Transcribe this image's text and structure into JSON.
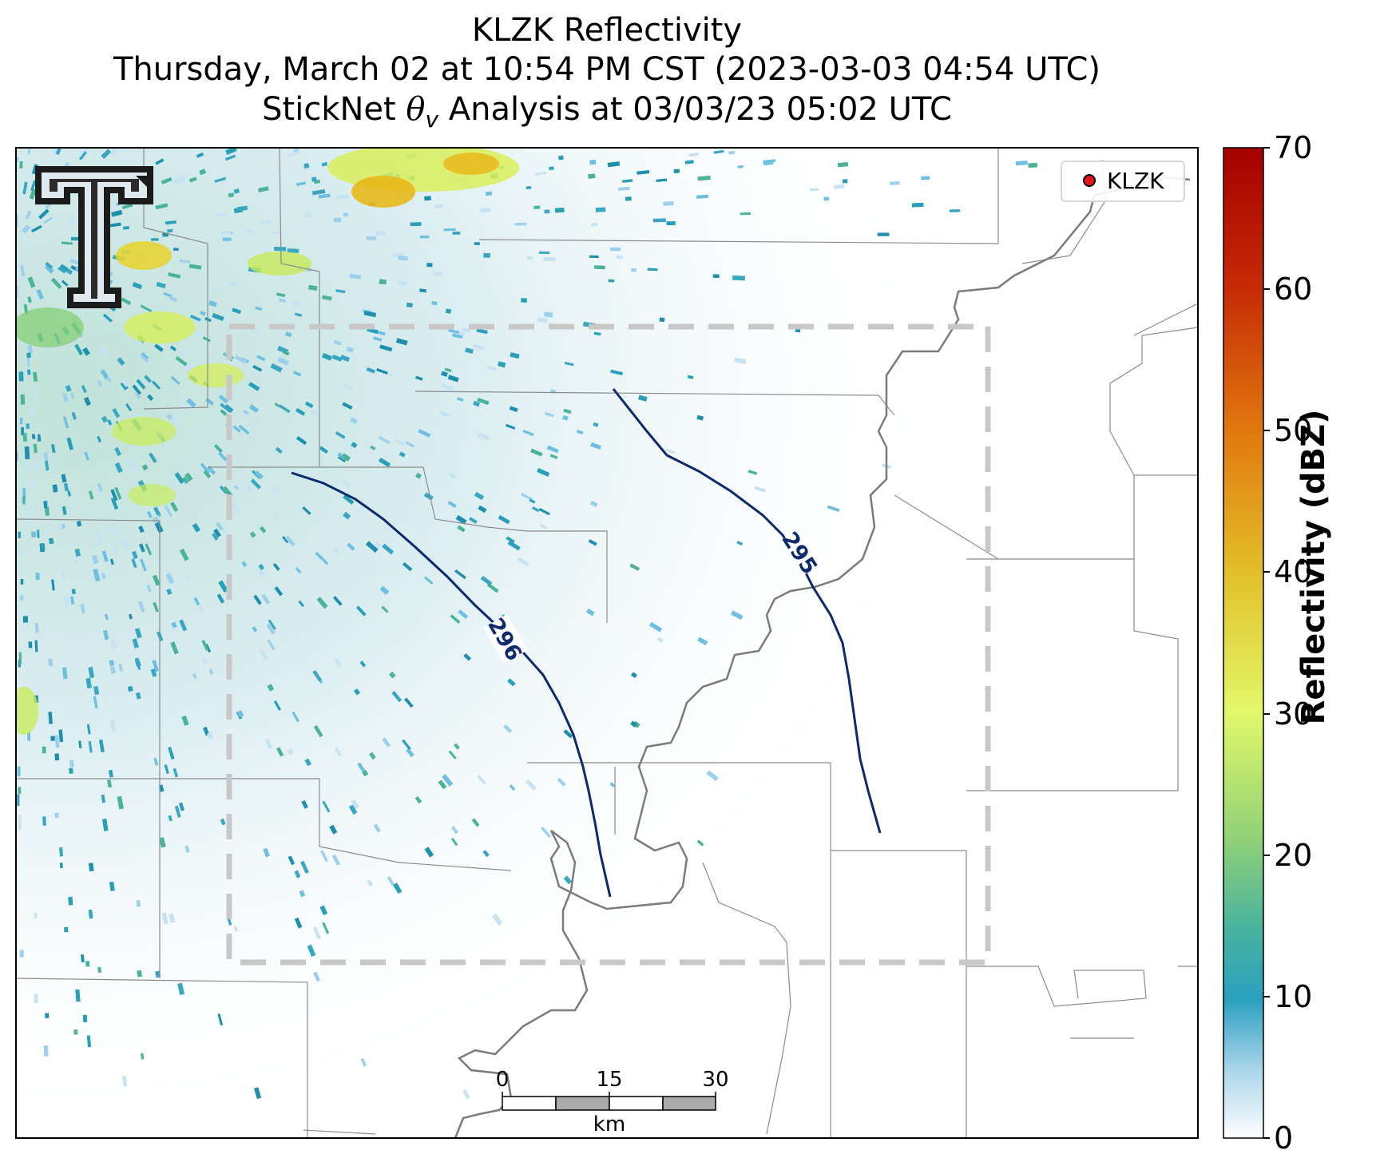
{
  "title": {
    "line1": "KLZK Reflectivity",
    "line2": "Thursday, March 02 at 10:54 PM CST (2023-03-03 04:54 UTC)",
    "line3_prefix": "StickNet ",
    "line3_symbol": "θ",
    "line3_subscript": "v",
    "line3_suffix": " Analysis at 03/03/23 05:02 UTC"
  },
  "legend": {
    "label": "KLZK",
    "marker_color": "#e8141c"
  },
  "colorbar": {
    "label": "Reflectivity (dBZ)",
    "min": 0,
    "max": 70,
    "ticks": [
      "0",
      "10",
      "20",
      "30",
      "40",
      "50",
      "60",
      "70"
    ]
  },
  "contours": [
    {
      "label": "296",
      "color": "#0d2a6e"
    },
    {
      "label": "295",
      "color": "#0d2a6e"
    }
  ],
  "scale_bar": {
    "labels": [
      "0",
      "15",
      "30"
    ],
    "unit": "km"
  },
  "logo": {
    "name": "texas-tech-double-t-logo"
  }
}
